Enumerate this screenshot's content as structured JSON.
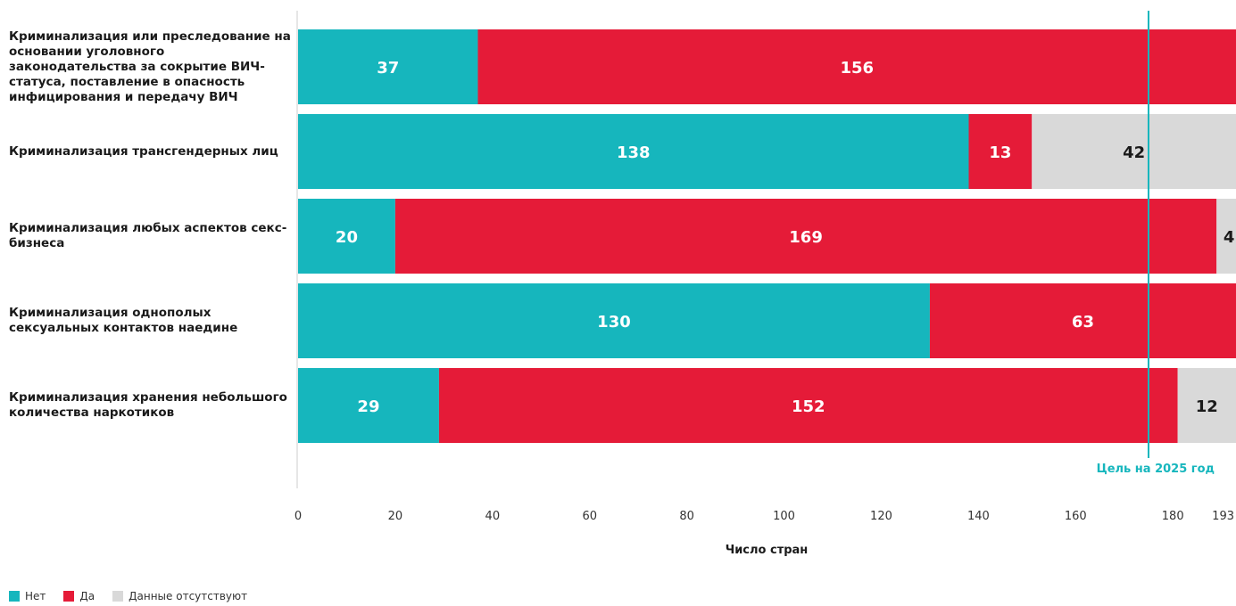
{
  "chart_data": {
    "type": "bar",
    "orientation": "horizontal",
    "stacked": true,
    "categories": [
      "Криминализация или преследование на основании уголовного законодательства за сокрытие ВИЧ-статуса, поставление в опасность инфицирования и передачу ВИЧ",
      "Криминализация трансгендерных лиц",
      "Криминализация любых аспектов секс-бизнеса",
      "Криминализация однополых сексуальных контактов наедине",
      "Криминализация хранения небольшого количества наркотиков"
    ],
    "series": [
      {
        "name": "Нет",
        "color": "#16b6bd",
        "values": [
          37,
          138,
          20,
          130,
          29
        ]
      },
      {
        "name": "Да",
        "color": "#e51b38",
        "values": [
          156,
          13,
          169,
          63,
          152
        ]
      },
      {
        "name": "Данные отсутствуют",
        "color": "#d9d9d9",
        "values": [
          0,
          42,
          4,
          0,
          12
        ]
      }
    ],
    "xlabel": "Число стран",
    "xlim": [
      0,
      193
    ],
    "xticks": [
      0,
      20,
      40,
      60,
      80,
      100,
      120,
      140,
      160,
      180,
      193
    ],
    "target": {
      "label": "Цель на 2025 год",
      "value": 175,
      "color": "#16b6bd"
    },
    "legend_position": "bottom-left",
    "grid": false
  }
}
